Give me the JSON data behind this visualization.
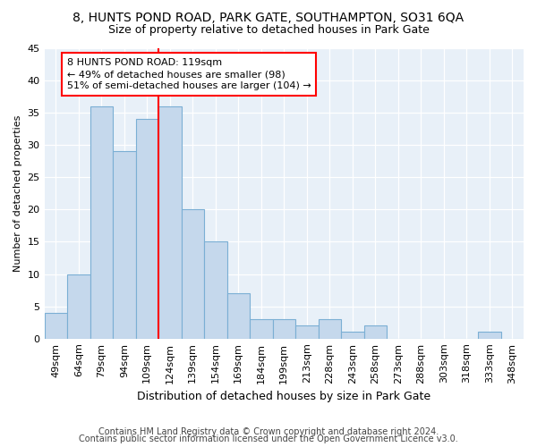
{
  "title1": "8, HUNTS POND ROAD, PARK GATE, SOUTHAMPTON, SO31 6QA",
  "title2": "Size of property relative to detached houses in Park Gate",
  "xlabel": "Distribution of detached houses by size in Park Gate",
  "ylabel": "Number of detached properties",
  "categories": [
    "49sqm",
    "64sqm",
    "79sqm",
    "94sqm",
    "109sqm",
    "124sqm",
    "139sqm",
    "154sqm",
    "169sqm",
    "184sqm",
    "199sqm",
    "213sqm",
    "228sqm",
    "243sqm",
    "258sqm",
    "273sqm",
    "288sqm",
    "303sqm",
    "318sqm",
    "333sqm",
    "348sqm"
  ],
  "values": [
    4,
    10,
    36,
    29,
    34,
    36,
    20,
    15,
    7,
    3,
    3,
    2,
    3,
    1,
    2,
    0,
    0,
    0,
    0,
    1,
    0
  ],
  "bar_color": "#c5d8ec",
  "bar_edge_color": "#7bafd4",
  "red_line_index": 5,
  "annotation_line1": "8 HUNTS POND ROAD: 119sqm",
  "annotation_line2": "← 49% of detached houses are smaller (98)",
  "annotation_line3": "51% of semi-detached houses are larger (104) →",
  "footer1": "Contains HM Land Registry data © Crown copyright and database right 2024.",
  "footer2": "Contains public sector information licensed under the Open Government Licence v3.0.",
  "ylim": [
    0,
    45
  ],
  "yticks": [
    0,
    5,
    10,
    15,
    20,
    25,
    30,
    35,
    40,
    45
  ],
  "plot_bg_color": "#e8f0f8",
  "title1_fontsize": 10,
  "title2_fontsize": 9,
  "xlabel_fontsize": 9,
  "ylabel_fontsize": 8,
  "tick_fontsize": 8,
  "annotation_fontsize": 8,
  "footer_fontsize": 7
}
